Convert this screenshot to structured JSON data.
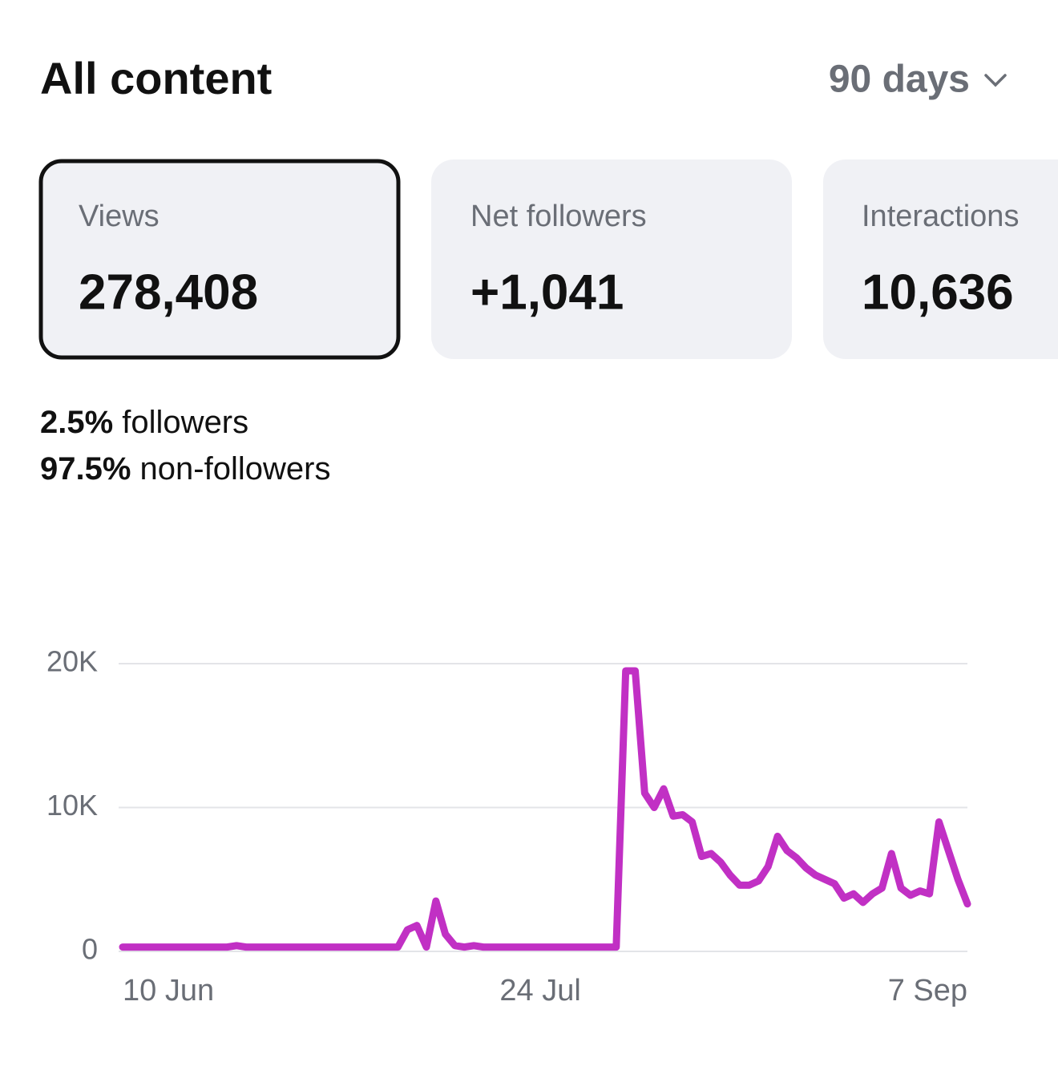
{
  "header": {
    "title": "All content",
    "period": "90 days"
  },
  "cards": [
    {
      "label": "Views",
      "value": "278,408",
      "selected": true
    },
    {
      "label": "Net followers",
      "value": "+1,041"
    },
    {
      "label": "Interactions",
      "value": "10,636"
    }
  ],
  "breakdown": [
    {
      "percent": "2.5%",
      "label": "followers"
    },
    {
      "percent": "97.5%",
      "label": "non-followers"
    }
  ],
  "chart_data": {
    "type": "line",
    "color": "#c130c4",
    "grid": true,
    "categories": [
      "10 Jun",
      null,
      null,
      null,
      null,
      null,
      null,
      null,
      null,
      null,
      null,
      null,
      null,
      null,
      null,
      null,
      null,
      null,
      null,
      null,
      null,
      null,
      null,
      null,
      null,
      null,
      null,
      null,
      null,
      null,
      null,
      null,
      null,
      null,
      null,
      null,
      null,
      null,
      null,
      null,
      null,
      null,
      null,
      null,
      "24 Jul",
      null,
      null,
      null,
      null,
      null,
      null,
      null,
      null,
      null,
      null,
      null,
      null,
      null,
      null,
      null,
      null,
      null,
      null,
      null,
      null,
      null,
      null,
      null,
      null,
      null,
      null,
      null,
      null,
      null,
      null,
      null,
      null,
      null,
      null,
      null,
      null,
      null,
      null,
      null,
      null,
      null,
      null,
      null,
      null,
      "7 Sep"
    ],
    "values": [
      300,
      300,
      300,
      300,
      300,
      300,
      300,
      300,
      300,
      300,
      300,
      300,
      400,
      300,
      300,
      300,
      300,
      300,
      300,
      300,
      300,
      300,
      300,
      300,
      300,
      300,
      300,
      300,
      300,
      300,
      1500,
      1800,
      300,
      3500,
      1200,
      400,
      300,
      400,
      300,
      300,
      300,
      300,
      300,
      300,
      300,
      300,
      300,
      300,
      300,
      300,
      300,
      300,
      300,
      19500,
      19500,
      11000,
      10000,
      11300,
      9400,
      9500,
      9000,
      6600,
      6800,
      6200,
      5300,
      4600,
      4600,
      4900,
      5900,
      8000,
      7000,
      6500,
      5800,
      5300,
      5000,
      4700,
      3700,
      4000,
      3400,
      4000,
      4400,
      6800,
      4400,
      3900,
      4200,
      4000,
      9000,
      7000,
      5000,
      3300
    ],
    "ylim": [
      0,
      20000
    ],
    "yticks": [
      0,
      {
        "value": 10000,
        "label": "10K"
      },
      {
        "value": 20000,
        "label": "20K"
      }
    ]
  }
}
